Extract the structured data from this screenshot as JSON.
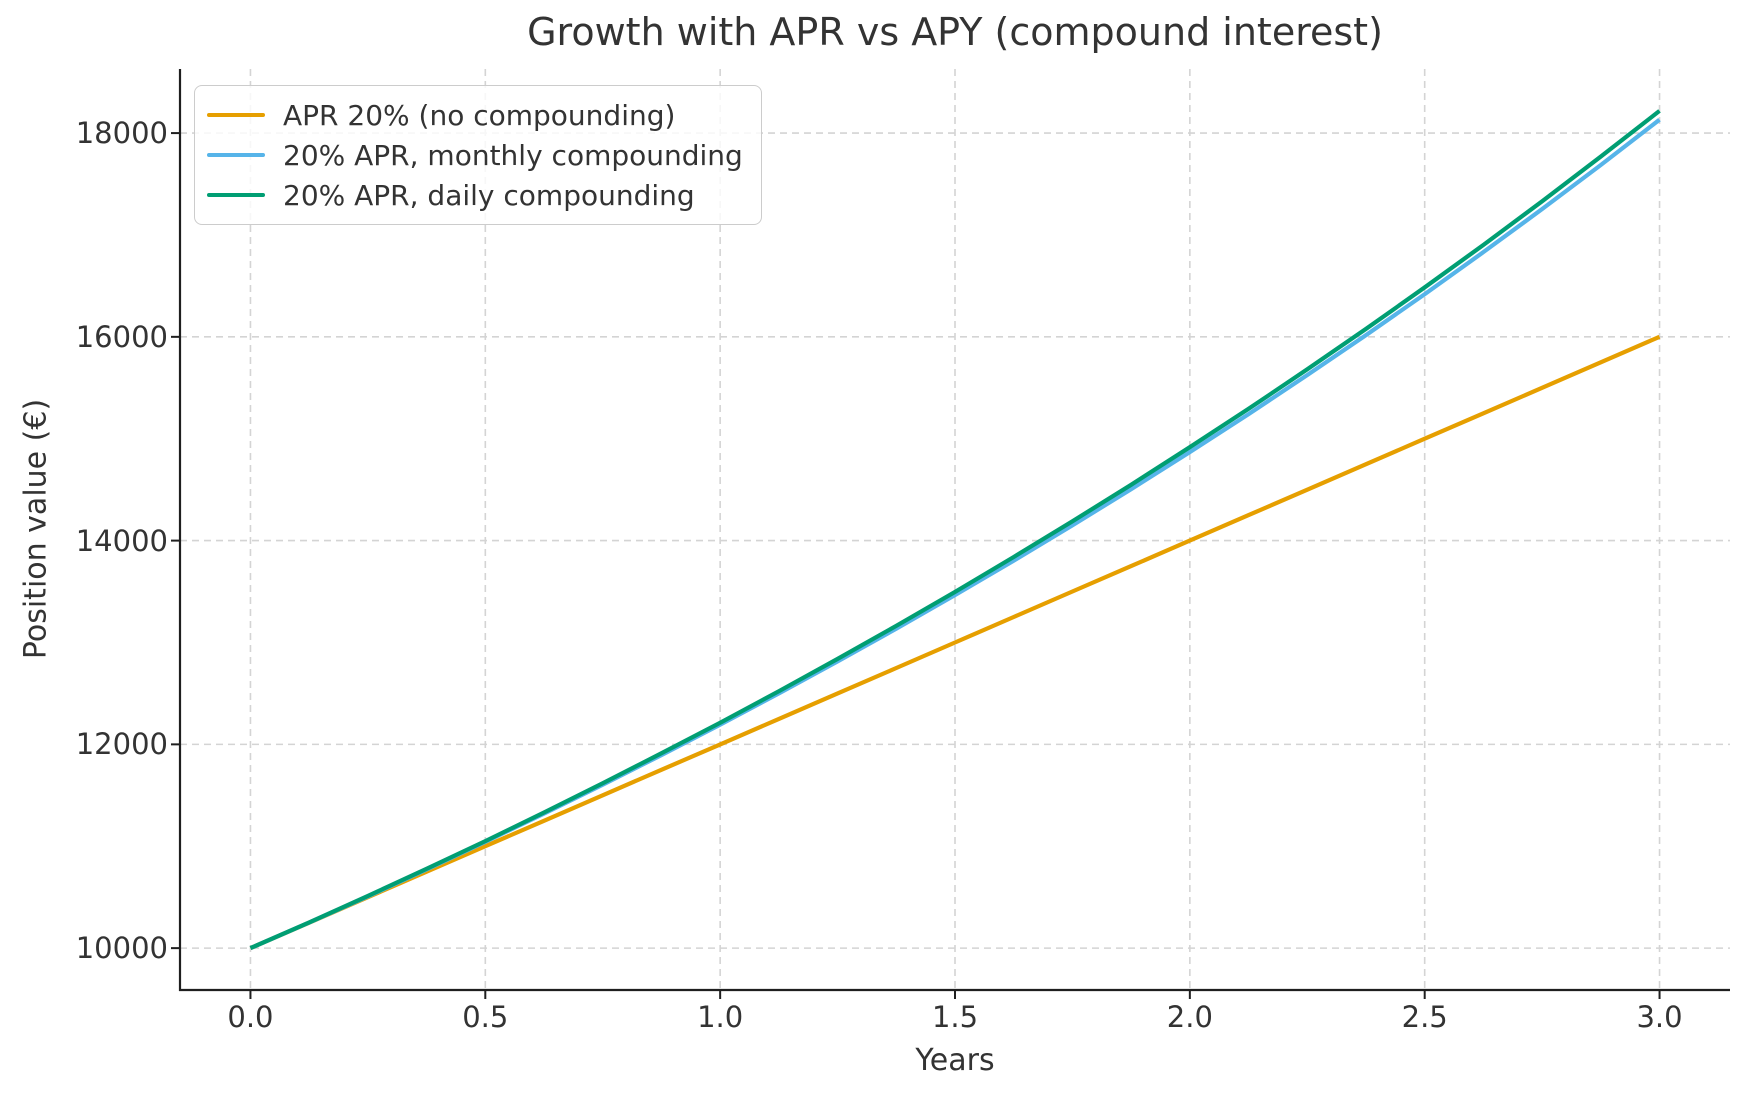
{
  "chart_data": {
    "type": "line",
    "title": "Growth with APR vs APY (compound interest)",
    "xlabel": "Years",
    "ylabel": "Position value (€)",
    "grid": true,
    "legend_position": "upper left",
    "xlim": [
      -0.15,
      3.15
    ],
    "ylim": [
      9589,
      18629
    ],
    "xticks": [
      0.0,
      0.5,
      1.0,
      1.5,
      2.0,
      2.5,
      3.0
    ],
    "xtick_labels": [
      "0.0",
      "0.5",
      "1.0",
      "1.5",
      "2.0",
      "2.5",
      "3.0"
    ],
    "yticks": [
      10000,
      12000,
      14000,
      16000,
      18000
    ],
    "ytick_labels": [
      "10000",
      "12000",
      "14000",
      "16000",
      "18000"
    ],
    "x": [
      0,
      0.125,
      0.25,
      0.375,
      0.5,
      0.625,
      0.75,
      0.875,
      1.0,
      1.125,
      1.25,
      1.375,
      1.5,
      1.625,
      1.75,
      1.875,
      2.0,
      2.125,
      2.25,
      2.375,
      2.5,
      2.625,
      2.75,
      2.875,
      3.0
    ],
    "series": [
      {
        "name": "APR 20% (no compounding)",
        "color": "#E69F00",
        "values": [
          10000,
          10250,
          10500,
          10750,
          11000,
          11250,
          11500,
          11750,
          12000,
          12250,
          12500,
          12750,
          13000,
          13250,
          13500,
          13750,
          14000,
          14250,
          14500,
          14750,
          15000,
          15250,
          15500,
          15750,
          16000
        ]
      },
      {
        "name": "20% APR, monthly compounding",
        "color": "#56B4E9",
        "values": [
          10000,
          10251,
          10508,
          10772,
          11043,
          11320,
          11604,
          11895,
          12194,
          12500,
          12814,
          13135,
          13465,
          13803,
          14150,
          14505,
          14869,
          15242,
          15625,
          16017,
          16419,
          16832,
          17254,
          17687,
          18131
        ]
      },
      {
        "name": "20% APR, daily compounding",
        "color": "#009E73",
        "values": [
          10000,
          10253,
          10513,
          10779,
          11051,
          11331,
          11618,
          11912,
          12213,
          12522,
          12839,
          13164,
          13497,
          13839,
          14189,
          14548,
          14917,
          15294,
          15681,
          16078,
          16485,
          16902,
          17330,
          17769,
          18218
        ]
      }
    ],
    "style": {
      "grid_color": "#d4d4d4",
      "spine_color": "#1f1f1f",
      "text_color": "#333333",
      "background": "#ffffff",
      "line_width": 4.2
    }
  }
}
